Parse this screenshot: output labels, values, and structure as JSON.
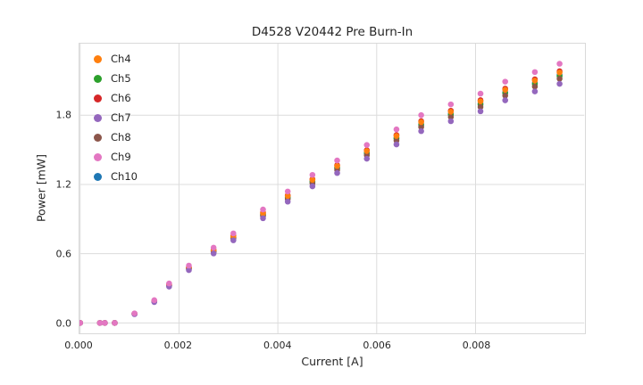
{
  "chart_data": {
    "type": "scatter",
    "title": "D4528 V20442 Pre Burn-In",
    "xlabel": "Current [A]",
    "ylabel": "Power [mW]",
    "xlim": [
      0,
      0.0102
    ],
    "ylim": [
      -0.09,
      2.42
    ],
    "xticks": [
      0.0,
      0.002,
      0.004,
      0.006,
      0.008
    ],
    "xtick_labels": [
      "0.000",
      "0.002",
      "0.004",
      "0.006",
      "0.008"
    ],
    "yticks": [
      0.0,
      0.6,
      1.2,
      1.8
    ],
    "ytick_labels": [
      "0.0",
      "0.6",
      "1.2",
      "1.8"
    ],
    "grid": true,
    "grid_color": "#dcdcdc",
    "legend_position": "upper left",
    "marker_radius": 3.3,
    "x": [
      0.0,
      0.0004,
      0.0005,
      0.0007,
      0.0011,
      0.0015,
      0.0018,
      0.0022,
      0.0027,
      0.0031,
      0.0037,
      0.0042,
      0.0047,
      0.0052,
      0.0058,
      0.0064,
      0.0069,
      0.0075,
      0.0081,
      0.0086,
      0.0092,
      0.0097
    ],
    "series": [
      {
        "name": "Ch4",
        "color": "#ff7f0e",
        "values": [
          0,
          0,
          0,
          0,
          0.08,
          0.19,
          0.33,
          0.48,
          0.63,
          0.75,
          0.95,
          1.1,
          1.24,
          1.36,
          1.49,
          1.62,
          1.74,
          1.83,
          1.92,
          2.02,
          2.1,
          2.17
        ]
      },
      {
        "name": "Ch5",
        "color": "#2ca02c",
        "values": [
          0,
          0,
          0,
          0,
          0.079,
          0.187,
          0.325,
          0.473,
          0.621,
          0.739,
          0.936,
          1.084,
          1.221,
          1.34,
          1.468,
          1.596,
          1.714,
          1.803,
          1.891,
          1.99,
          2.069,
          2.137
        ]
      },
      {
        "name": "Ch6",
        "color": "#d62728",
        "values": [
          0,
          0,
          0,
          0,
          0.08,
          0.191,
          0.332,
          0.482,
          0.633,
          0.754,
          0.955,
          1.106,
          1.246,
          1.367,
          1.497,
          1.628,
          1.749,
          1.839,
          1.93,
          2.03,
          2.111,
          2.181
        ]
      },
      {
        "name": "Ch7",
        "color": "#9467bd",
        "values": [
          0,
          0,
          0,
          0,
          0.076,
          0.181,
          0.315,
          0.458,
          0.602,
          0.716,
          0.907,
          1.051,
          1.184,
          1.299,
          1.423,
          1.547,
          1.662,
          1.748,
          1.834,
          1.929,
          2.006,
          2.072
        ]
      },
      {
        "name": "Ch8",
        "color": "#8c564b",
        "values": [
          0,
          0,
          0,
          0,
          0.078,
          0.185,
          0.322,
          0.468,
          0.614,
          0.731,
          0.926,
          1.073,
          1.209,
          1.326,
          1.453,
          1.58,
          1.697,
          1.784,
          1.872,
          1.97,
          2.048,
          2.116
        ]
      },
      {
        "name": "Ch9",
        "color": "#e377c2",
        "values": [
          0,
          0,
          0,
          0,
          0.083,
          0.197,
          0.342,
          0.497,
          0.652,
          0.776,
          0.983,
          1.139,
          1.283,
          1.408,
          1.542,
          1.677,
          1.801,
          1.894,
          1.987,
          2.091,
          2.174,
          2.246
        ]
      },
      {
        "name": "Ch10",
        "color": "#1f77b4",
        "values": [
          0,
          0,
          0,
          0,
          0.079,
          0.188,
          0.327,
          0.475,
          0.624,
          0.743,
          0.941,
          1.089,
          1.228,
          1.346,
          1.475,
          1.604,
          1.723,
          1.812,
          1.901,
          2.0,
          2.079,
          2.148
        ]
      }
    ],
    "draw_order": [
      "Ch10",
      "Ch5",
      "Ch6",
      "Ch8",
      "Ch4",
      "Ch7",
      "Ch9"
    ]
  }
}
